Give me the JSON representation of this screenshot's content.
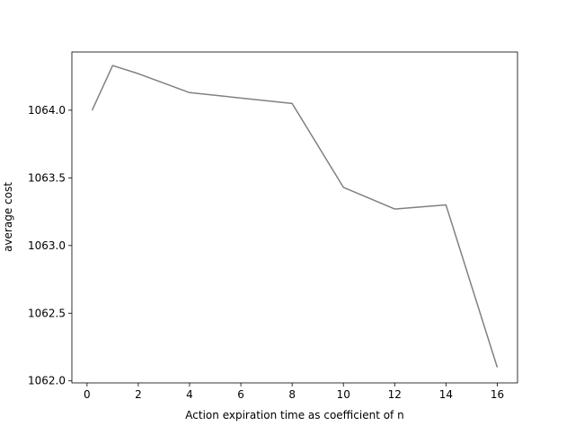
{
  "chart_data": {
    "type": "line",
    "title": "",
    "xlabel": "Action expiration time as coefficient of n",
    "ylabel": "average cost",
    "xlim": [
      -0.59,
      16.79
    ],
    "ylim": [
      1061.985,
      1064.43
    ],
    "xticks": [
      0,
      2,
      4,
      6,
      8,
      10,
      12,
      14,
      16
    ],
    "xtick_labels": [
      "0",
      "2",
      "4",
      "6",
      "8",
      "10",
      "12",
      "14",
      "16"
    ],
    "yticks": [
      1062.0,
      1062.5,
      1063.0,
      1063.5,
      1064.0
    ],
    "ytick_labels": [
      "1062.0",
      "1062.5",
      "1063.0",
      "1063.5",
      "1064.0"
    ],
    "grid": false,
    "legend": "none",
    "series": [
      {
        "color": "#808080",
        "x": [
          0.2,
          1,
          2,
          4,
          8,
          10,
          12,
          14,
          16
        ],
        "y": [
          1064.0,
          1064.33,
          1064.27,
          1064.13,
          1064.05,
          1063.43,
          1063.27,
          1063.3,
          1062.1
        ]
      }
    ]
  }
}
